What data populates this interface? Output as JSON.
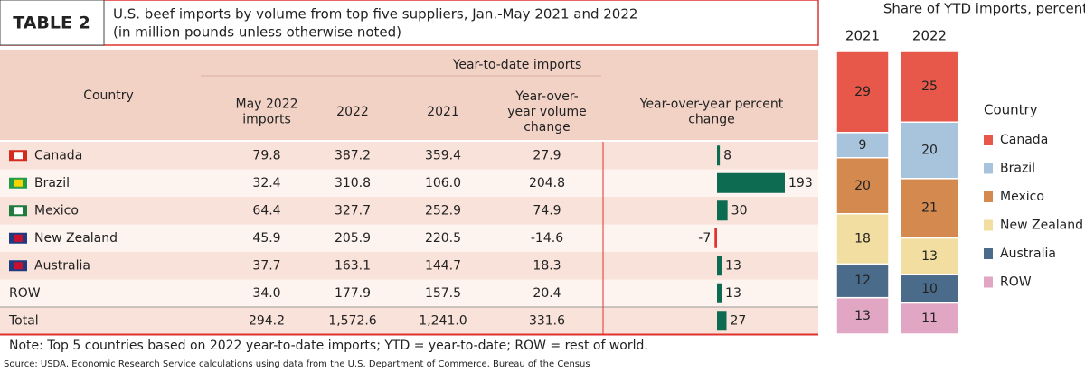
{
  "header": {
    "tag": "TABLE 2",
    "title": "U.S. beef imports by volume from top five suppliers, Jan.-May 2021 and 2022",
    "subtitle": "(in million pounds unless otherwise noted)"
  },
  "table": {
    "group_header": "Year-to-date imports",
    "columns": [
      [
        "Country"
      ],
      [
        "May 2022",
        "imports"
      ],
      [
        "2022"
      ],
      [
        "2021"
      ],
      [
        "Year-over-",
        "year volume",
        "change"
      ],
      [
        "Year-over-year percent",
        "change"
      ]
    ],
    "rows": [
      [
        "Canada",
        "79.8",
        "387.2",
        "359.4",
        "27.9"
      ],
      [
        "Brazil",
        "32.4",
        "310.8",
        "106.0",
        "204.8"
      ],
      [
        "Mexico",
        "64.4",
        "327.7",
        "252.9",
        "74.9"
      ],
      [
        "New Zealand",
        "45.9",
        "205.9",
        "220.5",
        "-14.6"
      ],
      [
        "Australia",
        "37.7",
        "163.1",
        "144.7",
        "18.3"
      ],
      [
        "ROW",
        "34.0",
        "177.9",
        "157.5",
        "20.4"
      ],
      [
        "Total",
        "294.2",
        "1,572.6",
        "1,241.0",
        "331.6"
      ]
    ],
    "pct_change": [
      8,
      193,
      30,
      -7,
      13,
      13,
      27
    ],
    "bar_color": "#0d6b52",
    "neg_color": "#e0322f"
  },
  "chart_data": {
    "type": "stacked-bar",
    "title": "Share of YTD imports, percent",
    "legend_title": "Country",
    "categories": [
      "2021",
      "2022"
    ],
    "series": [
      {
        "name": "Canada",
        "color": "#e8584a",
        "values": [
          29,
          25
        ]
      },
      {
        "name": "Brazil",
        "color": "#a8c4dc",
        "values": [
          9,
          20
        ]
      },
      {
        "name": "Mexico",
        "color": "#d4894f",
        "values": [
          20,
          21
        ]
      },
      {
        "name": "New Zealand",
        "color": "#f2dea0",
        "values": [
          18,
          13
        ]
      },
      {
        "name": "Australia",
        "color": "#4a6b8a",
        "values": [
          12,
          10
        ]
      },
      {
        "name": "ROW",
        "color": "#e0a6c4",
        "values": [
          13,
          11
        ]
      }
    ]
  },
  "footer": {
    "note": "Note: Top 5 countries based on 2022 year-to-date imports; YTD = year-to-date; ROW = rest of world.",
    "source": "Source: USDA, Economic Research Service calculations using data from the U.S. Department of Commerce, Bureau of the Census"
  }
}
